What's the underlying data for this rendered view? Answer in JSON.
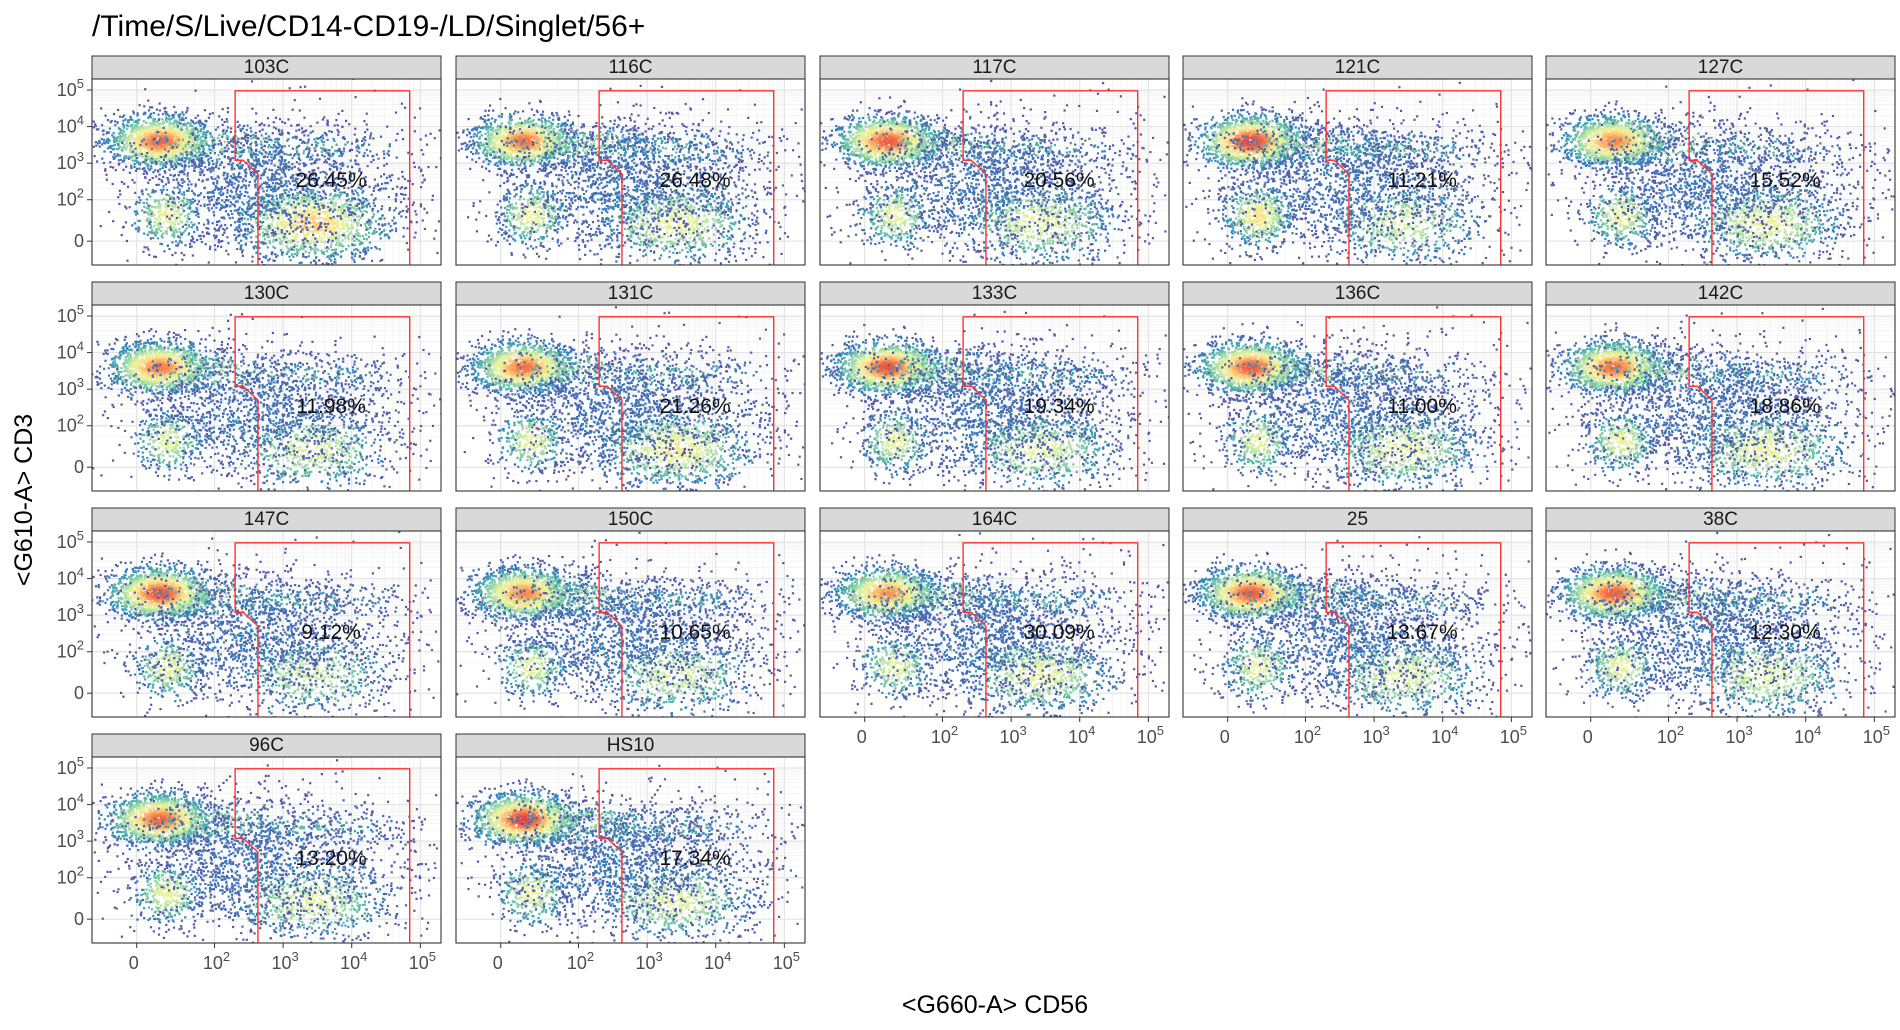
{
  "chart_data": {
    "type": "scatter",
    "title": "/Time/S/Live/CD14-CD19-/LD/Singlet/56+",
    "xlabel": "<G660-A> CD56",
    "ylabel": "<G610-A> CD3",
    "xlim": [
      -30,
      200000
    ],
    "ylim": [
      -30,
      200000
    ],
    "scale": "biexponential",
    "grid": true,
    "colormap": [
      "#5e4fa2",
      "#3288bd",
      "#66c2a5",
      "#abdda4",
      "#e6f598",
      "#fee08b",
      "#fdae61",
      "#f46d43",
      "#d53e4f"
    ],
    "gate_color": "#ff3333",
    "x_ticks": [
      {
        "value": 0,
        "base": "0",
        "exp": ""
      },
      {
        "value": 100,
        "base": "10",
        "exp": "2"
      },
      {
        "value": 1000,
        "base": "10",
        "exp": "3"
      },
      {
        "value": 10000,
        "base": "10",
        "exp": "4"
      },
      {
        "value": 100000,
        "base": "10",
        "exp": "5"
      }
    ],
    "y_ticks": [
      {
        "value": 0,
        "base": "0",
        "exp": ""
      },
      {
        "value": 100,
        "base": "10",
        "exp": "2"
      },
      {
        "value": 1000,
        "base": "10",
        "exp": "3"
      },
      {
        "value": 10000,
        "base": "10",
        "exp": "4"
      },
      {
        "value": 100000,
        "base": "10",
        "exp": "5"
      }
    ],
    "gate": {
      "x_left_top": 200,
      "x_left_bottom": 430,
      "x_right": 70000,
      "y_top": 95000,
      "y_notch": 1200,
      "y_notch_bottom": 500,
      "y_bottom": -30
    },
    "facets": [
      {
        "label": "103C",
        "gate_pct": "26.45%",
        "cd3_hi": 1.0,
        "cd3_hi_int": 0.75,
        "dn": 0.5,
        "nk": 0.95,
        "mid": 0.5
      },
      {
        "label": "116C",
        "gate_pct": "26.48%",
        "cd3_hi": 0.85,
        "cd3_hi_int": 0.7,
        "dn": 0.55,
        "nk": 0.6,
        "mid": 0.7
      },
      {
        "label": "117C",
        "gate_pct": "20.56%",
        "cd3_hi": 0.9,
        "cd3_hi_int": 0.8,
        "dn": 0.5,
        "nk": 0.55,
        "mid": 0.5
      },
      {
        "label": "121C",
        "gate_pct": "11.21%",
        "cd3_hi": 1.0,
        "cd3_hi_int": 0.95,
        "dn": 0.75,
        "nk": 0.45,
        "mid": 0.7
      },
      {
        "label": "127C",
        "gate_pct": "15.52%",
        "cd3_hi": 0.9,
        "cd3_hi_int": 0.6,
        "dn": 0.55,
        "nk": 0.6,
        "mid": 0.4
      },
      {
        "label": "130C",
        "gate_pct": "11.98%",
        "cd3_hi": 0.9,
        "cd3_hi_int": 0.65,
        "dn": 0.45,
        "nk": 0.45,
        "mid": 0.4
      },
      {
        "label": "131C",
        "gate_pct": "21.26%",
        "cd3_hi": 0.95,
        "cd3_hi_int": 0.7,
        "dn": 0.45,
        "nk": 0.7,
        "mid": 0.5
      },
      {
        "label": "133C",
        "gate_pct": "19.34%",
        "cd3_hi": 1.0,
        "cd3_hi_int": 0.85,
        "dn": 0.5,
        "nk": 0.5,
        "mid": 0.7
      },
      {
        "label": "136C",
        "gate_pct": "11.00%",
        "cd3_hi": 1.0,
        "cd3_hi_int": 0.8,
        "dn": 0.45,
        "nk": 0.55,
        "mid": 0.45
      },
      {
        "label": "142C",
        "gate_pct": "18.86%",
        "cd3_hi": 0.95,
        "cd3_hi_int": 0.7,
        "dn": 0.5,
        "nk": 0.6,
        "mid": 0.5
      },
      {
        "label": "147C",
        "gate_pct": "9.12%",
        "cd3_hi": 1.0,
        "cd3_hi_int": 0.85,
        "dn": 0.5,
        "nk": 0.4,
        "mid": 0.5
      },
      {
        "label": "150C",
        "gate_pct": "10.65%",
        "cd3_hi": 0.95,
        "cd3_hi_int": 0.6,
        "dn": 0.45,
        "nk": 0.45,
        "mid": 0.6
      },
      {
        "label": "164C",
        "gate_pct": "30.09%",
        "cd3_hi": 0.85,
        "cd3_hi_int": 0.55,
        "dn": 0.45,
        "nk": 0.55,
        "mid": 0.6
      },
      {
        "label": "25",
        "gate_pct": "13.67%",
        "cd3_hi": 1.0,
        "cd3_hi_int": 0.8,
        "dn": 0.5,
        "nk": 0.5,
        "mid": 0.5
      },
      {
        "label": "38C",
        "gate_pct": "12.30%",
        "cd3_hi": 1.0,
        "cd3_hi_int": 0.8,
        "dn": 0.5,
        "nk": 0.5,
        "mid": 0.55
      },
      {
        "label": "96C",
        "gate_pct": "13.20%",
        "cd3_hi": 1.0,
        "cd3_hi_int": 0.75,
        "dn": 0.5,
        "nk": 0.5,
        "mid": 0.55
      },
      {
        "label": "HS10",
        "gate_pct": "17.34%",
        "cd3_hi": 1.0,
        "cd3_hi_int": 0.95,
        "dn": 0.5,
        "nk": 0.5,
        "mid": 0.6
      }
    ]
  }
}
